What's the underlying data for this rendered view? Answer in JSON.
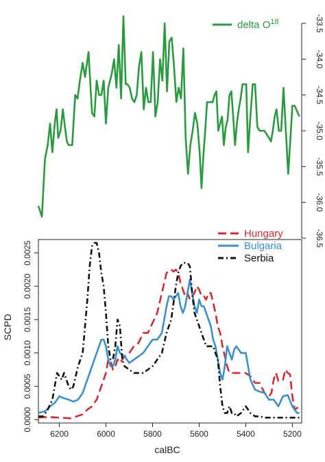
{
  "chart_data": [
    {
      "type": "line",
      "series": [
        {
          "name": "delta O",
          "name_superscript": "18",
          "color": "#2a9a3e",
          "x": [
            6290,
            6275,
            6262,
            6250,
            6240,
            6230,
            6220,
            6212,
            6205,
            6195,
            6185,
            6178,
            6168,
            6160,
            6145,
            6132,
            6122,
            6112,
            6100,
            6090,
            6075,
            6060,
            6050,
            6040,
            6030,
            6020,
            6010,
            6000,
            5990,
            5975,
            5965,
            5955,
            5945,
            5935,
            5925,
            5915,
            5908,
            5898,
            5888,
            5878,
            5868,
            5858,
            5848,
            5838,
            5828,
            5818,
            5808,
            5798,
            5788,
            5778,
            5768,
            5758,
            5748,
            5738,
            5728,
            5718,
            5708,
            5698,
            5688,
            5678,
            5668,
            5658,
            5648,
            5638,
            5628,
            5618,
            5608,
            5598,
            5590,
            5582,
            5574,
            5566,
            5558,
            5550,
            5542,
            5534,
            5526,
            5518,
            5510,
            5502,
            5494,
            5486,
            5478,
            5470,
            5462,
            5454,
            5446,
            5438,
            5430,
            5422,
            5414,
            5406,
            5398,
            5390,
            5380,
            5370,
            5360,
            5350,
            5340,
            5330,
            5320,
            5310,
            5300,
            5292,
            5284,
            5276,
            5268,
            5258,
            5248,
            5238,
            5228,
            5218,
            5210,
            5200,
            5190,
            5170
          ],
          "y": [
            -36.05,
            -36.2,
            -35.4,
            -35.2,
            -34.9,
            -35.3,
            -34.9,
            -34.7,
            -35.1,
            -35.0,
            -34.7,
            -34.9,
            -35.15,
            -35.2,
            -35.2,
            -34.5,
            -34.55,
            -34.3,
            -34.05,
            -34.25,
            -33.9,
            -34.75,
            -34.8,
            -34.3,
            -34.5,
            -34.5,
            -34.3,
            -34.9,
            -34.4,
            -34.2,
            -34.0,
            -34.4,
            -33.8,
            -34.55,
            -33.4,
            -34.35,
            -34.35,
            -34.4,
            -34.55,
            -34.6,
            -34.5,
            -34.1,
            -33.9,
            -34.7,
            -34.4,
            -34.6,
            -34.6,
            -33.9,
            -34.8,
            -34.6,
            -34.0,
            -34.3,
            -33.5,
            -34.45,
            -33.75,
            -33.7,
            -34.1,
            -34.6,
            -34.4,
            -34.55,
            -33.85,
            -35.1,
            -35.6,
            -35.2,
            -35.0,
            -34.75,
            -34.9,
            -35.3,
            -35.8,
            -35.35,
            -35.0,
            -34.6,
            -34.6,
            -34.6,
            -34.6,
            -34.5,
            -34.45,
            -35.0,
            -34.9,
            -34.8,
            -35.2,
            -34.95,
            -34.85,
            -34.5,
            -34.45,
            -34.8,
            -35.2,
            -34.9,
            -34.7,
            -34.55,
            -34.35,
            -34.35,
            -34.35,
            -35.3,
            -34.8,
            -34.35,
            -34.35,
            -34.95,
            -35.0,
            -35.0,
            -35.0,
            -35.05,
            -35.1,
            -35.15,
            -35.0,
            -34.8,
            -34.7,
            -35.0,
            -35.0,
            -34.4,
            -35.0,
            -35.6,
            -35.2,
            -34.65,
            -34.65,
            -34.8
          ]
        }
      ],
      "xlim": [
        6290,
        5160
      ],
      "ylim": [
        -36.5,
        -33.25
      ],
      "yticks": [
        -33.5,
        -34.0,
        -34.5,
        -35.0,
        -35.5,
        -36.0,
        -36.5
      ],
      "ytick_labels": [
        "-33.5",
        "-34.0",
        "-34.5",
        "-35.0",
        "-35.5",
        "-36.0",
        "-36.5"
      ],
      "ytick_side": "right",
      "legend": "top-right",
      "grid": false
    },
    {
      "type": "line",
      "xlabel": "calBC",
      "ylabel": "SCPD",
      "xlim": [
        6290,
        5160
      ],
      "ylim": [
        -5e-05,
        0.0027
      ],
      "xticks": [
        6200,
        6000,
        5800,
        5600,
        5400,
        5200
      ],
      "xtick_labels": [
        "6200",
        "6000",
        "5800",
        "5600",
        "5400",
        "5200"
      ],
      "yticks": [
        0.0,
        0.0005,
        0.001,
        0.0015,
        0.002,
        0.0025
      ],
      "ytick_labels": [
        "0.0000",
        "0.0005",
        "0.0010",
        "0.0015",
        "0.0020",
        "0.0025"
      ],
      "legend": "top-right",
      "grid": false,
      "series": [
        {
          "name": "Hungary",
          "color": "#d42a32",
          "dash": "dashed",
          "x": [
            6290,
            6250,
            6200,
            6150,
            6100,
            6080,
            6060,
            6040,
            6020,
            6000,
            5990,
            5980,
            5970,
            5960,
            5950,
            5940,
            5920,
            5900,
            5880,
            5860,
            5840,
            5820,
            5800,
            5780,
            5760,
            5740,
            5720,
            5710,
            5700,
            5690,
            5680,
            5670,
            5660,
            5650,
            5640,
            5630,
            5620,
            5610,
            5600,
            5590,
            5580,
            5570,
            5560,
            5550,
            5540,
            5530,
            5520,
            5510,
            5500,
            5490,
            5480,
            5470,
            5460,
            5440,
            5420,
            5400,
            5380,
            5360,
            5340,
            5320,
            5300,
            5290,
            5280,
            5270,
            5260,
            5250,
            5240,
            5230,
            5220,
            5210,
            5200,
            5190,
            5170
          ],
          "y": [
            3e-05,
            4e-05,
            3e-05,
            2e-05,
            8e-05,
            0.00015,
            0.0002,
            0.0003,
            0.0005,
            0.0007,
            0.0009,
            0.00088,
            0.00075,
            0.0008,
            0.0009,
            0.00085,
            0.00095,
            0.001,
            0.0011,
            0.00115,
            0.0013,
            0.0013,
            0.00145,
            0.0016,
            0.0019,
            0.0022,
            0.00225,
            0.00222,
            0.00225,
            0.0022,
            0.00205,
            0.00195,
            0.00185,
            0.0019,
            0.0018,
            0.00185,
            0.0019,
            0.002,
            0.00195,
            0.00185,
            0.00185,
            0.0018,
            0.0019,
            0.0019,
            0.00175,
            0.0016,
            0.0014,
            0.0013,
            0.0011,
            0.00095,
            0.0008,
            0.0007,
            0.0007,
            0.0007,
            0.0007,
            0.0007,
            0.00065,
            0.00055,
            0.00055,
            0.0004,
            0.00035,
            0.0004,
            0.0006,
            0.0007,
            0.00058,
            0.00058,
            0.0006,
            0.00075,
            0.0007,
            0.00068,
            0.00035,
            0.00015,
            0.0002
          ]
        },
        {
          "name": "Bulgaria",
          "color": "#3a8fcf",
          "dash": "solid",
          "x": [
            6290,
            6260,
            6240,
            6220,
            6200,
            6180,
            6160,
            6140,
            6120,
            6100,
            6080,
            6060,
            6040,
            6020,
            6010,
            6000,
            5990,
            5980,
            5970,
            5960,
            5950,
            5940,
            5920,
            5900,
            5880,
            5860,
            5840,
            5820,
            5800,
            5780,
            5760,
            5740,
            5730,
            5720,
            5710,
            5700,
            5690,
            5680,
            5670,
            5660,
            5650,
            5640,
            5630,
            5620,
            5610,
            5600,
            5590,
            5580,
            5570,
            5560,
            5550,
            5540,
            5530,
            5520,
            5510,
            5500,
            5490,
            5480,
            5470,
            5460,
            5450,
            5440,
            5420,
            5400,
            5380,
            5360,
            5340,
            5320,
            5300,
            5280,
            5260,
            5240,
            5220,
            5200,
            5180,
            5170
          ],
          "y": [
            0.0001,
            0.00013,
            0.0002,
            0.00025,
            0.00035,
            0.00032,
            0.0003,
            0.00027,
            0.0003,
            0.0004,
            0.0006,
            0.0008,
            0.001,
            0.0012,
            0.0012,
            0.0011,
            0.0009,
            0.0008,
            0.0008,
            0.0009,
            0.0011,
            0.001,
            0.00095,
            0.00085,
            0.0009,
            0.00095,
            0.001,
            0.0011,
            0.0012,
            0.0012,
            0.0013,
            0.0017,
            0.00185,
            0.00185,
            0.0018,
            0.00185,
            0.0019,
            0.0017,
            0.0016,
            0.0017,
            0.0019,
            0.0021,
            0.0019,
            0.0017,
            0.0016,
            0.0018,
            0.0017,
            0.0017,
            0.0016,
            0.0015,
            0.0014,
            0.0012,
            0.0011,
            0.0009,
            0.0007,
            0.0006,
            0.0008,
            0.0011,
            0.001,
            0.0009,
            0.00105,
            0.0011,
            0.001,
            0.001,
            0.0006,
            0.00045,
            0.00042,
            0.0004,
            0.0003,
            0.0003,
            0.0002,
            0.00035,
            0.00037,
            0.0002,
            0.0001,
            0.0001
          ]
        },
        {
          "name": "Serbia",
          "color": "#111111",
          "dash": "dashdot",
          "x": [
            6290,
            6270,
            6250,
            6230,
            6220,
            6210,
            6200,
            6190,
            6180,
            6170,
            6160,
            6150,
            6140,
            6120,
            6100,
            6090,
            6080,
            6070,
            6060,
            6050,
            6040,
            6030,
            6020,
            6010,
            6000,
            5990,
            5980,
            5970,
            5960,
            5950,
            5940,
            5930,
            5920,
            5900,
            5880,
            5860,
            5840,
            5820,
            5800,
            5780,
            5760,
            5740,
            5720,
            5700,
            5690,
            5680,
            5670,
            5660,
            5650,
            5640,
            5630,
            5620,
            5610,
            5600,
            5590,
            5580,
            5570,
            5560,
            5550,
            5540,
            5530,
            5520,
            5510,
            5500,
            5490,
            5480,
            5470,
            5460,
            5450,
            5440,
            5420,
            5400,
            5380,
            5360,
            5340,
            5320,
            5300,
            5280,
            5260,
            5240,
            5220,
            5200,
            5180,
            5170
          ],
          "y": [
            5e-05,
            5e-05,
            0.00015,
            0.0003,
            0.0005,
            0.0007,
            0.00065,
            0.0006,
            0.0007,
            0.0006,
            0.0005,
            0.00045,
            0.0005,
            0.0008,
            0.001,
            0.0014,
            0.0018,
            0.0023,
            0.0026,
            0.00265,
            0.00265,
            0.0025,
            0.0022,
            0.002,
            0.0016,
            0.0011,
            0.0009,
            0.0009,
            0.0011,
            0.0015,
            0.0014,
            0.0009,
            0.0008,
            0.00075,
            0.0007,
            0.0007,
            0.0007,
            0.00075,
            0.0008,
            0.0009,
            0.001,
            0.0013,
            0.0015,
            0.002,
            0.0022,
            0.0023,
            0.00235,
            0.00235,
            0.00235,
            0.0023,
            0.0019,
            0.0016,
            0.0015,
            0.0014,
            0.0013,
            0.0012,
            0.0011,
            0.0011,
            0.0011,
            0.0011,
            0.001,
            0.0009,
            0.0005,
            0.0002,
            0.0001,
            0.0001,
            0.0002,
            0.0001,
            0.0001,
            5e-05,
            0.0001,
            0.0002,
            0.0001,
            5e-05,
            5e-05,
            3e-05,
            3e-05,
            3e-05,
            3e-05,
            3e-05,
            3e-05,
            3e-05,
            3e-05,
            3e-05
          ]
        }
      ]
    }
  ]
}
